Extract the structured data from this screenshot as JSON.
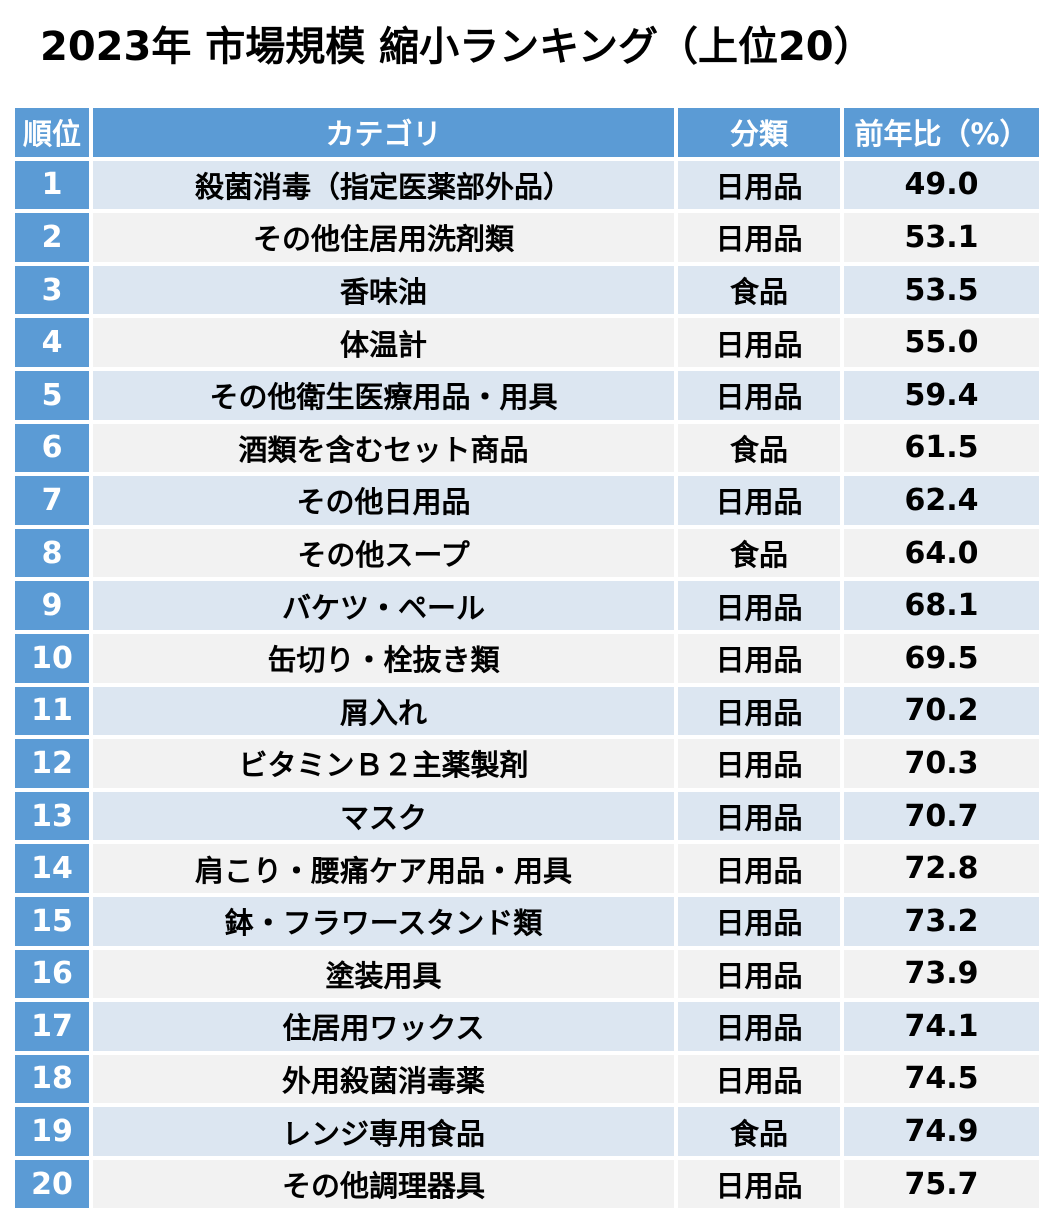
{
  "title": "2023年 市場規模 縮小ランキング（上位20）",
  "colors": {
    "header_bg": "#5b9bd5",
    "header_text": "#ffffff",
    "row_odd_bg": "#dce6f1",
    "row_even_bg": "#f2f2f2"
  },
  "table": {
    "headers": {
      "rank": "順位",
      "category": "カテゴリ",
      "class": "分類",
      "ratio": "前年比（%）"
    },
    "rows": [
      {
        "rank": "1",
        "category": "殺菌消毒（指定医薬部外品）",
        "class": "日用品",
        "ratio": "49.0"
      },
      {
        "rank": "2",
        "category": "その他住居用洗剤類",
        "class": "日用品",
        "ratio": "53.1"
      },
      {
        "rank": "3",
        "category": "香味油",
        "class": "食品",
        "ratio": "53.5"
      },
      {
        "rank": "4",
        "category": "体温計",
        "class": "日用品",
        "ratio": "55.0"
      },
      {
        "rank": "5",
        "category": "その他衛生医療用品・用具",
        "class": "日用品",
        "ratio": "59.4"
      },
      {
        "rank": "6",
        "category": "酒類を含むセット商品",
        "class": "食品",
        "ratio": "61.5"
      },
      {
        "rank": "7",
        "category": "その他日用品",
        "class": "日用品",
        "ratio": "62.4"
      },
      {
        "rank": "8",
        "category": "その他スープ",
        "class": "食品",
        "ratio": "64.0"
      },
      {
        "rank": "9",
        "category": "バケツ・ペール",
        "class": "日用品",
        "ratio": "68.1"
      },
      {
        "rank": "10",
        "category": "缶切り・栓抜き類",
        "class": "日用品",
        "ratio": "69.5"
      },
      {
        "rank": "11",
        "category": "屑入れ",
        "class": "日用品",
        "ratio": "70.2"
      },
      {
        "rank": "12",
        "category": "ビタミンＢ２主薬製剤",
        "class": "日用品",
        "ratio": "70.3"
      },
      {
        "rank": "13",
        "category": "マスク",
        "class": "日用品",
        "ratio": "70.7"
      },
      {
        "rank": "14",
        "category": "肩こり・腰痛ケア用品・用具",
        "class": "日用品",
        "ratio": "72.8"
      },
      {
        "rank": "15",
        "category": "鉢・フラワースタンド類",
        "class": "日用品",
        "ratio": "73.2"
      },
      {
        "rank": "16",
        "category": "塗装用具",
        "class": "日用品",
        "ratio": "73.9"
      },
      {
        "rank": "17",
        "category": "住居用ワックス",
        "class": "日用品",
        "ratio": "74.1"
      },
      {
        "rank": "18",
        "category": "外用殺菌消毒薬",
        "class": "日用品",
        "ratio": "74.5"
      },
      {
        "rank": "19",
        "category": "レンジ専用食品",
        "class": "食品",
        "ratio": "74.9"
      },
      {
        "rank": "20",
        "category": "その他調理器具",
        "class": "日用品",
        "ratio": "75.7"
      }
    ]
  }
}
